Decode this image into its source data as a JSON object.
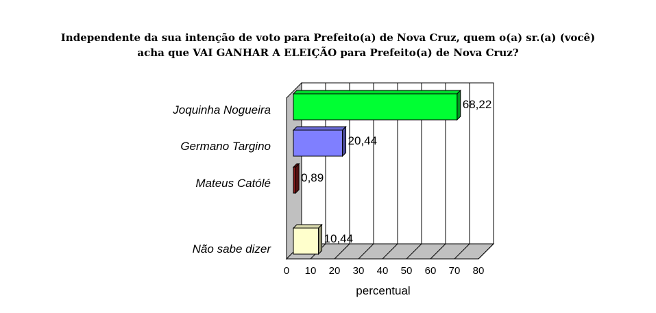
{
  "chart_data": {
    "type": "bar",
    "orientation": "horizontal",
    "title_lines": [
      "Independente da sua intenção de voto para Prefeito(a) de Nova Cruz, quem o(a) sr.(a) (você)",
      "acha que VAI GANHAR A ELEIÇÃO para Prefeito(a) de Nova Cruz?"
    ],
    "xlabel": "percentual",
    "xlim": [
      0,
      80
    ],
    "xticks": [
      "0",
      "10",
      "20",
      "30",
      "40",
      "50",
      "60",
      "70",
      "80"
    ],
    "grid": true,
    "three_d": true,
    "categories": [
      "Joquinha Nogueira",
      "Germano Targino",
      "Mateus Católé",
      "Não sabe dizer"
    ],
    "values": [
      68.22,
      20.44,
      0.89,
      10.44
    ],
    "value_labels": [
      "68,22",
      "20,44",
      "0,89",
      "10,44"
    ],
    "colors": [
      "#00ff33",
      "#7f7fff",
      "#8b1a1a",
      "#ffffcc"
    ]
  }
}
